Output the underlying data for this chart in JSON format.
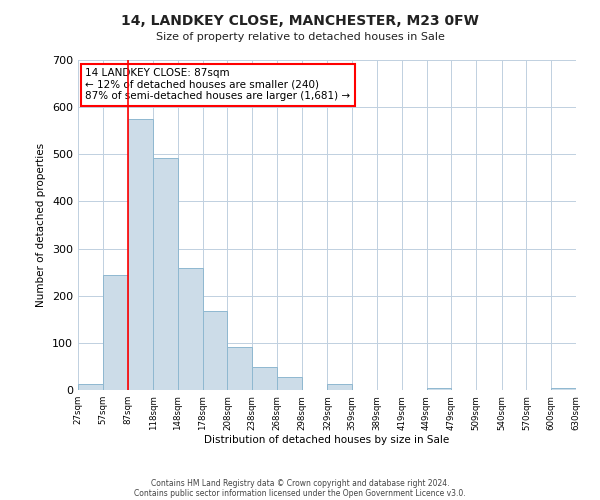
{
  "title": "14, LANDKEY CLOSE, MANCHESTER, M23 0FW",
  "subtitle": "Size of property relative to detached houses in Sale",
  "xlabel": "Distribution of detached houses by size in Sale",
  "ylabel": "Number of detached properties",
  "footer_line1": "Contains HM Land Registry data © Crown copyright and database right 2024.",
  "footer_line2": "Contains public sector information licensed under the Open Government Licence v3.0.",
  "annotation_title": "14 LANDKEY CLOSE: 87sqm",
  "annotation_line2": "← 12% of detached houses are smaller (240)",
  "annotation_line3": "87% of semi-detached houses are larger (1,681) →",
  "bar_color": "#ccdce8",
  "bar_edge_color": "#8fb8d0",
  "redline_x": 87,
  "ylim": [
    0,
    700
  ],
  "yticks": [
    0,
    100,
    200,
    300,
    400,
    500,
    600,
    700
  ],
  "bin_edges": [
    27,
    57,
    87,
    118,
    148,
    178,
    208,
    238,
    268,
    298,
    329,
    359,
    389,
    419,
    449,
    479,
    509,
    540,
    570,
    600,
    630
  ],
  "bin_labels": [
    "27sqm",
    "57sqm",
    "87sqm",
    "118sqm",
    "148sqm",
    "178sqm",
    "208sqm",
    "238sqm",
    "268sqm",
    "298sqm",
    "329sqm",
    "359sqm",
    "389sqm",
    "419sqm",
    "449sqm",
    "479sqm",
    "509sqm",
    "540sqm",
    "570sqm",
    "600sqm",
    "630sqm"
  ],
  "bar_heights": [
    12,
    244,
    575,
    493,
    258,
    168,
    91,
    48,
    27,
    0,
    13,
    0,
    0,
    0,
    5,
    0,
    0,
    0,
    0,
    5
  ],
  "background_color": "#ffffff",
  "grid_color": "#c0d0e0"
}
